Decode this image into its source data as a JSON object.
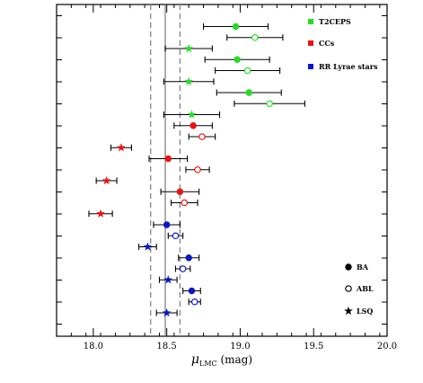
{
  "chart_data": {
    "type": "scatter",
    "title": "",
    "xlabel_main": "μ",
    "xlabel_sub": "LMC",
    "xlabel_unit": " (mag)",
    "ylabel": "",
    "xlim": [
      17.75,
      20.0
    ],
    "xticks": [
      {
        "value": 18.0,
        "label": "18.0"
      },
      {
        "value": 18.5,
        "label": "18.5"
      },
      {
        "value": 19.0,
        "label": "19.0"
      },
      {
        "value": 19.5,
        "label": "19.5"
      },
      {
        "value": 20.0,
        "label": "20.0"
      }
    ],
    "reference_lines": {
      "solid": 18.49,
      "dashed": [
        18.39,
        18.59
      ]
    },
    "series": [
      {
        "name": "T2CEPS",
        "color": "#22dd22"
      },
      {
        "name": "CCs",
        "color": "#ee1111"
      },
      {
        "name": "RR Lyrae stars",
        "color": "#0a14c8"
      }
    ],
    "marker_legend": [
      {
        "name": "BA",
        "marker": "filled-circle"
      },
      {
        "name": "ABL",
        "marker": "open-circle"
      },
      {
        "name": "LSQ",
        "marker": "star"
      }
    ],
    "points": [
      {
        "row": 1,
        "series": 0,
        "marker": "filled-circle",
        "x": 18.97,
        "err": 0.22
      },
      {
        "row": 2,
        "series": 0,
        "marker": "open-circle",
        "x": 19.1,
        "err": 0.19
      },
      {
        "row": 3,
        "series": 0,
        "marker": "star",
        "x": 18.65,
        "err": 0.16
      },
      {
        "row": 4,
        "series": 0,
        "marker": "filled-circle",
        "x": 18.98,
        "err": 0.22
      },
      {
        "row": 5,
        "series": 0,
        "marker": "open-circle",
        "x": 19.05,
        "err": 0.22
      },
      {
        "row": 6,
        "series": 0,
        "marker": "star",
        "x": 18.65,
        "err": 0.17
      },
      {
        "row": 7,
        "series": 0,
        "marker": "filled-circle",
        "x": 19.06,
        "err": 0.22
      },
      {
        "row": 8,
        "series": 0,
        "marker": "open-circle",
        "x": 19.2,
        "err": 0.24
      },
      {
        "row": 9,
        "series": 0,
        "marker": "star",
        "x": 18.67,
        "err": 0.19
      },
      {
        "row": 10,
        "series": 1,
        "marker": "filled-circle",
        "x": 18.68,
        "err": 0.13
      },
      {
        "row": 11,
        "series": 1,
        "marker": "open-circle",
        "x": 18.74,
        "err": 0.09
      },
      {
        "row": 12,
        "series": 1,
        "marker": "star",
        "x": 18.19,
        "err": 0.07
      },
      {
        "row": 13,
        "series": 1,
        "marker": "filled-circle",
        "x": 18.51,
        "err": 0.13
      },
      {
        "row": 14,
        "series": 1,
        "marker": "open-circle",
        "x": 18.71,
        "err": 0.08
      },
      {
        "row": 15,
        "series": 1,
        "marker": "star",
        "x": 18.09,
        "err": 0.07
      },
      {
        "row": 16,
        "series": 1,
        "marker": "filled-circle",
        "x": 18.59,
        "err": 0.13
      },
      {
        "row": 17,
        "series": 1,
        "marker": "open-circle",
        "x": 18.62,
        "err": 0.09
      },
      {
        "row": 18,
        "series": 1,
        "marker": "star",
        "x": 18.05,
        "err": 0.08
      },
      {
        "row": 19,
        "series": 2,
        "marker": "filled-circle",
        "x": 18.5,
        "err": 0.09
      },
      {
        "row": 20,
        "series": 2,
        "marker": "open-circle",
        "x": 18.56,
        "err": 0.05
      },
      {
        "row": 21,
        "series": 2,
        "marker": "star",
        "x": 18.37,
        "err": 0.06
      },
      {
        "row": 22,
        "series": 2,
        "marker": "filled-circle",
        "x": 18.65,
        "err": 0.07
      },
      {
        "row": 23,
        "series": 2,
        "marker": "open-circle",
        "x": 18.61,
        "err": 0.05
      },
      {
        "row": 24,
        "series": 2,
        "marker": "star",
        "x": 18.51,
        "err": 0.06
      },
      {
        "row": 25,
        "series": 2,
        "marker": "filled-circle",
        "x": 18.67,
        "err": 0.06
      },
      {
        "row": 26,
        "series": 2,
        "marker": "open-circle",
        "x": 18.69,
        "err": 0.04
      },
      {
        "row": 27,
        "series": 2,
        "marker": "star",
        "x": 18.5,
        "err": 0.07
      }
    ]
  }
}
